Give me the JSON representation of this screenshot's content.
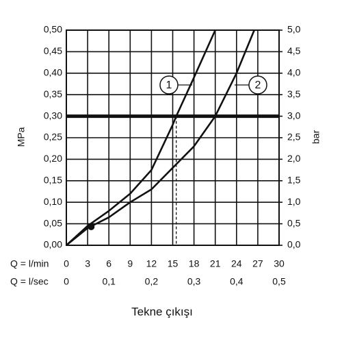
{
  "chart_data": {
    "type": "line",
    "title": "Tekne çıkışı",
    "xlabel": "Q = l/min",
    "x2label": "Q = l/sec",
    "ylabel": "MPa",
    "y2label": "bar",
    "xlim": [
      0,
      30
    ],
    "xticks": [
      0,
      3,
      6,
      9,
      12,
      15,
      18,
      21,
      24,
      27,
      30
    ],
    "x2lim": [
      0,
      0.5
    ],
    "x2ticks": [
      0,
      {
        "value": 0.1,
        "label": "0,1"
      },
      {
        "value": 0.2,
        "label": "0,2"
      },
      {
        "value": 0.3,
        "label": "0,3"
      },
      {
        "value": 0.4,
        "label": "0,4"
      },
      {
        "value": 0.5,
        "label": "0,5"
      }
    ],
    "ylim": [
      0,
      0.5
    ],
    "yticks": [
      {
        "value": 0,
        "label": "0,00"
      },
      {
        "value": 0.05,
        "label": "0,05"
      },
      {
        "value": 0.1,
        "label": "0,10"
      },
      {
        "value": 0.15,
        "label": "0,15"
      },
      {
        "value": 0.2,
        "label": "0,20"
      },
      {
        "value": 0.25,
        "label": "0,25"
      },
      {
        "value": 0.3,
        "label": "0,30"
      },
      {
        "value": 0.35,
        "label": "0,35"
      },
      {
        "value": 0.4,
        "label": "0,40"
      },
      {
        "value": 0.45,
        "label": "0,45"
      },
      {
        "value": 0.5,
        "label": "0,50"
      }
    ],
    "y2lim": [
      0,
      5
    ],
    "y2ticks": [
      {
        "value": 0,
        "label": "0,0"
      },
      {
        "value": 0.5,
        "label": "0,5"
      },
      {
        "value": 1,
        "label": "1,0"
      },
      {
        "value": 1.5,
        "label": "1,5"
      },
      {
        "value": 2,
        "label": "2,0"
      },
      {
        "value": 2.5,
        "label": "2,5"
      },
      {
        "value": 3,
        "label": "3,0"
      },
      {
        "value": 3.5,
        "label": "3,5"
      },
      {
        "value": 4,
        "label": "4,0"
      },
      {
        "value": 4.5,
        "label": "4,5"
      },
      {
        "value": 5,
        "label": "5,0"
      }
    ],
    "grid": true,
    "series": [
      {
        "name": "1",
        "color": "#111111",
        "x": [
          0,
          3,
          6,
          9,
          12,
          15,
          15.5,
          18,
          21
        ],
        "values": [
          0,
          0.045,
          0.08,
          0.12,
          0.175,
          0.28,
          0.3,
          0.39,
          0.5
        ]
      },
      {
        "name": "2",
        "color": "#111111",
        "x": [
          0,
          3,
          6,
          9,
          12,
          15,
          18,
          21,
          24,
          26.5
        ],
        "values": [
          0,
          0.04,
          0.065,
          0.1,
          0.13,
          0.18,
          0.23,
          0.3,
          0.4,
          0.5
        ]
      }
    ],
    "marker": {
      "x": 3.5,
      "y": 0.043
    },
    "hline": 0.3,
    "vlines": [
      15.5,
      21
    ]
  }
}
